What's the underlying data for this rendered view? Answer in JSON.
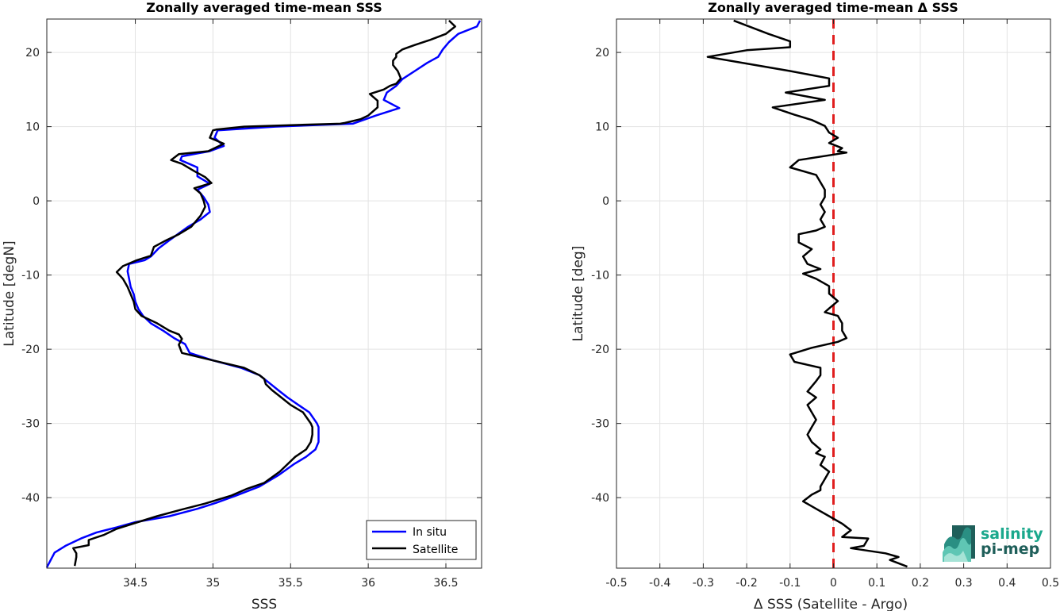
{
  "colors": {
    "in_situ": "#0000ff",
    "satellite": "#000000",
    "zero_line": "#e01e1e",
    "grid": "#e3e3e3",
    "axis": "#262626",
    "logo_teal": "#1aa88c",
    "logo_dark": "#1f5f5a"
  },
  "logo": {
    "line1": "salinity",
    "line2": "pi-mep"
  },
  "chart_data": [
    {
      "type": "line",
      "title": "Zonally averaged time-mean SSS",
      "xlabel": "SSS",
      "ylabel": "Latitude [degN]",
      "xlim": [
        33.93,
        36.73
      ],
      "ylim": [
        -49.5,
        24.5
      ],
      "xticks": [
        34.5,
        35,
        35.5,
        36,
        36.5
      ],
      "xtick_labels": [
        "34.5",
        "35",
        "35.5",
        "36",
        "36.5"
      ],
      "yticks": [
        20,
        10,
        0,
        -10,
        -20,
        -30,
        -40
      ],
      "ytick_labels": [
        "20",
        "10",
        "0",
        "-10",
        "-20",
        "-30",
        "-40"
      ],
      "grid": true,
      "legend": "bottom-right",
      "series": [
        {
          "name": "In situ",
          "color_key": "in_situ",
          "points": [
            [
              36.72,
              24.3
            ],
            [
              36.7,
              23.5
            ],
            [
              36.58,
              22.5
            ],
            [
              36.52,
              21.4
            ],
            [
              36.48,
              20.4
            ],
            [
              36.45,
              19.4
            ],
            [
              36.38,
              18.6
            ],
            [
              36.3,
              17.5
            ],
            [
              36.22,
              16.4
            ],
            [
              36.18,
              15.5
            ],
            [
              36.12,
              14.6
            ],
            [
              36.1,
              13.6
            ],
            [
              36.2,
              12.5
            ],
            [
              36.05,
              11.5
            ],
            [
              35.9,
              10.4
            ],
            [
              35.4,
              10.0
            ],
            [
              35.03,
              9.5
            ],
            [
              35.01,
              8.5
            ],
            [
              35.07,
              7.4
            ],
            [
              34.98,
              6.7
            ],
            [
              34.8,
              6.0
            ],
            [
              34.79,
              5.5
            ],
            [
              34.9,
              4.5
            ],
            [
              34.9,
              3.3
            ],
            [
              34.98,
              2.3
            ],
            [
              34.9,
              1.5
            ],
            [
              34.94,
              0.5
            ],
            [
              34.97,
              -0.5
            ],
            [
              34.98,
              -1.5
            ],
            [
              34.92,
              -2.5
            ],
            [
              34.84,
              -3.5
            ],
            [
              34.72,
              -5.3
            ],
            [
              34.65,
              -6.4
            ],
            [
              34.6,
              -7.5
            ],
            [
              34.56,
              -8.0
            ],
            [
              34.46,
              -8.5
            ],
            [
              34.45,
              -9.5
            ],
            [
              34.46,
              -10.5
            ],
            [
              34.47,
              -11.6
            ],
            [
              34.49,
              -12.6
            ],
            [
              34.5,
              -13.6
            ],
            [
              34.52,
              -14.6
            ],
            [
              34.55,
              -15.5
            ],
            [
              34.6,
              -16.5
            ],
            [
              34.68,
              -17.5
            ],
            [
              34.75,
              -18.5
            ],
            [
              34.82,
              -19.3
            ],
            [
              34.85,
              -20.5
            ],
            [
              35.0,
              -21.5
            ],
            [
              35.18,
              -22.5
            ],
            [
              35.3,
              -23.5
            ],
            [
              35.36,
              -24.5
            ],
            [
              35.42,
              -25.5
            ],
            [
              35.48,
              -26.5
            ],
            [
              35.55,
              -27.5
            ],
            [
              35.62,
              -28.5
            ],
            [
              35.67,
              -30.0
            ],
            [
              35.68,
              -30.5
            ],
            [
              35.68,
              -31.5
            ],
            [
              35.68,
              -32.5
            ],
            [
              35.66,
              -33.5
            ],
            [
              35.6,
              -34.5
            ],
            [
              35.52,
              -35.5
            ],
            [
              35.42,
              -37.0
            ],
            [
              35.3,
              -38.5
            ],
            [
              35.15,
              -39.7
            ],
            [
              35.02,
              -40.7
            ],
            [
              34.9,
              -41.5
            ],
            [
              34.72,
              -42.5
            ],
            [
              34.5,
              -43.3
            ],
            [
              34.38,
              -44.0
            ],
            [
              34.25,
              -44.7
            ],
            [
              34.15,
              -45.5
            ],
            [
              34.05,
              -46.5
            ],
            [
              33.98,
              -47.4
            ],
            [
              33.93,
              -49.4
            ]
          ]
        },
        {
          "name": "Satellite",
          "color_key": "satellite",
          "points": [
            [
              36.52,
              24.3
            ],
            [
              36.56,
              23.5
            ],
            [
              36.5,
              22.5
            ],
            [
              36.4,
              21.7
            ],
            [
              36.3,
              21.0
            ],
            [
              36.22,
              20.4
            ],
            [
              36.18,
              19.8
            ],
            [
              36.18,
              19.4
            ],
            [
              36.16,
              18.9
            ],
            [
              36.16,
              18.3
            ],
            [
              36.19,
              17.5
            ],
            [
              36.21,
              16.5
            ],
            [
              36.18,
              15.8
            ],
            [
              36.14,
              15.5
            ],
            [
              36.1,
              15.0
            ],
            [
              36.01,
              14.4
            ],
            [
              36.06,
              13.5
            ],
            [
              36.06,
              12.6
            ],
            [
              36.0,
              11.5
            ],
            [
              35.95,
              11.0
            ],
            [
              35.85,
              10.5
            ],
            [
              35.82,
              10.4
            ],
            [
              35.5,
              10.2
            ],
            [
              35.2,
              10.0
            ],
            [
              35.02,
              9.6
            ],
            [
              35.0,
              9.5
            ],
            [
              34.98,
              8.5
            ],
            [
              35.07,
              7.7
            ],
            [
              34.97,
              6.7
            ],
            [
              34.78,
              6.3
            ],
            [
              34.73,
              5.5
            ],
            [
              34.8,
              5.0
            ],
            [
              34.88,
              4.0
            ],
            [
              34.95,
              3.2
            ],
            [
              34.99,
              2.4
            ],
            [
              34.88,
              1.7
            ],
            [
              34.92,
              1.0
            ],
            [
              34.94,
              0.0
            ],
            [
              34.95,
              -0.8
            ],
            [
              34.92,
              -2.0
            ],
            [
              34.86,
              -3.5
            ],
            [
              34.78,
              -4.5
            ],
            [
              34.7,
              -5.3
            ],
            [
              34.62,
              -6.2
            ],
            [
              34.6,
              -7.4
            ],
            [
              34.51,
              -8.0
            ],
            [
              34.42,
              -8.8
            ],
            [
              34.38,
              -9.6
            ],
            [
              34.42,
              -10.5
            ],
            [
              34.45,
              -11.6
            ],
            [
              34.47,
              -12.6
            ],
            [
              34.49,
              -13.6
            ],
            [
              34.5,
              -14.6
            ],
            [
              34.54,
              -15.5
            ],
            [
              34.64,
              -16.5
            ],
            [
              34.72,
              -17.5
            ],
            [
              34.78,
              -18.0
            ],
            [
              34.8,
              -18.6
            ],
            [
              34.78,
              -19.4
            ],
            [
              34.8,
              -20.5
            ],
            [
              35.0,
              -21.5
            ],
            [
              35.2,
              -22.5
            ],
            [
              35.3,
              -23.5
            ],
            [
              35.33,
              -24.0
            ],
            [
              35.34,
              -24.7
            ],
            [
              35.38,
              -25.5
            ],
            [
              35.44,
              -26.5
            ],
            [
              35.5,
              -27.5
            ],
            [
              35.58,
              -28.5
            ],
            [
              35.63,
              -30.0
            ],
            [
              35.64,
              -30.5
            ],
            [
              35.64,
              -31.5
            ],
            [
              35.63,
              -32.5
            ],
            [
              35.6,
              -33.5
            ],
            [
              35.53,
              -34.5
            ],
            [
              35.43,
              -36.5
            ],
            [
              35.33,
              -38.0
            ],
            [
              35.22,
              -38.8
            ],
            [
              35.12,
              -39.7
            ],
            [
              34.95,
              -40.8
            ],
            [
              34.8,
              -41.6
            ],
            [
              34.64,
              -42.5
            ],
            [
              34.5,
              -43.4
            ],
            [
              34.38,
              -44.2
            ],
            [
              34.3,
              -45.0
            ],
            [
              34.2,
              -45.7
            ],
            [
              34.2,
              -46.4
            ],
            [
              34.1,
              -46.8
            ],
            [
              34.12,
              -47.5
            ],
            [
              34.12,
              -48.0
            ],
            [
              34.11,
              -49.2
            ]
          ]
        }
      ]
    },
    {
      "type": "line",
      "title": "Zonally averaged time-mean Δ SSS",
      "xlabel": "Δ SSS (Satellite - Argo)",
      "ylabel": "Latitude [deg]",
      "xlim": [
        -0.5,
        0.5
      ],
      "ylim": [
        -49.5,
        24.5
      ],
      "xticks": [
        -0.5,
        -0.4,
        -0.3,
        -0.2,
        -0.1,
        0,
        0.1,
        0.2,
        0.3,
        0.4,
        0.5
      ],
      "xtick_labels": [
        "-0.5",
        "-0.4",
        "-0.3",
        "-0.2",
        "-0.1",
        "0",
        "0.1",
        "0.2",
        "0.3",
        "0.4",
        "0.5"
      ],
      "yticks": [
        20,
        10,
        0,
        -10,
        -20,
        -30,
        -40
      ],
      "ytick_labels": [
        "20",
        "10",
        "0",
        "-10",
        "-20",
        "-30",
        "-40"
      ],
      "grid": true,
      "reference_line_x": 0,
      "series": [
        {
          "name": "",
          "color_key": "satellite",
          "points": [
            [
              -0.23,
              24.3
            ],
            [
              -0.15,
              22.5
            ],
            [
              -0.1,
              21.5
            ],
            [
              -0.1,
              20.7
            ],
            [
              -0.2,
              20.3
            ],
            [
              -0.29,
              19.4
            ],
            [
              -0.2,
              18.5
            ],
            [
              -0.1,
              17.5
            ],
            [
              -0.01,
              16.5
            ],
            [
              -0.01,
              15.5
            ],
            [
              -0.11,
              14.6
            ],
            [
              -0.02,
              13.6
            ],
            [
              -0.14,
              12.6
            ],
            [
              -0.09,
              11.6
            ],
            [
              -0.05,
              10.9
            ],
            [
              -0.02,
              10.1
            ],
            [
              -0.01,
              9.2
            ],
            [
              0.01,
              8.5
            ],
            [
              -0.01,
              7.8
            ],
            [
              0.02,
              7.1
            ],
            [
              0.01,
              6.7
            ],
            [
              0.03,
              6.5
            ],
            [
              -0.08,
              5.5
            ],
            [
              -0.1,
              4.5
            ],
            [
              -0.04,
              3.5
            ],
            [
              -0.03,
              2.5
            ],
            [
              -0.02,
              1.5
            ],
            [
              -0.02,
              0.5
            ],
            [
              -0.03,
              -0.5
            ],
            [
              -0.02,
              -1.5
            ],
            [
              -0.03,
              -2.5
            ],
            [
              -0.02,
              -3.5
            ],
            [
              -0.04,
              -4.0
            ],
            [
              -0.08,
              -4.5
            ],
            [
              -0.08,
              -5.6
            ],
            [
              -0.05,
              -6.5
            ],
            [
              -0.07,
              -7.5
            ],
            [
              -0.06,
              -8.5
            ],
            [
              -0.03,
              -9.2
            ],
            [
              -0.07,
              -9.8
            ],
            [
              -0.04,
              -10.5
            ],
            [
              -0.01,
              -11.5
            ],
            [
              -0.01,
              -12.5
            ],
            [
              0.01,
              -13.5
            ],
            [
              -0.01,
              -14.5
            ],
            [
              -0.02,
              -15.0
            ],
            [
              0.01,
              -15.5
            ],
            [
              0.02,
              -16.5
            ],
            [
              0.02,
              -17.5
            ],
            [
              0.03,
              -18.5
            ],
            [
              0.01,
              -19.0
            ],
            [
              -0.05,
              -19.8
            ],
            [
              -0.1,
              -20.7
            ],
            [
              -0.09,
              -21.7
            ],
            [
              -0.03,
              -22.5
            ],
            [
              -0.03,
              -23.5
            ],
            [
              -0.04,
              -24.3
            ],
            [
              -0.06,
              -25.7
            ],
            [
              -0.04,
              -26.5
            ],
            [
              -0.06,
              -27.5
            ],
            [
              -0.05,
              -28.5
            ],
            [
              -0.04,
              -29.5
            ],
            [
              -0.05,
              -30.5
            ],
            [
              -0.06,
              -31.5
            ],
            [
              -0.05,
              -32.5
            ],
            [
              -0.03,
              -33.5
            ],
            [
              -0.04,
              -34.0
            ],
            [
              -0.02,
              -34.5
            ],
            [
              -0.03,
              -35.6
            ],
            [
              -0.01,
              -36.5
            ],
            [
              -0.02,
              -37.5
            ],
            [
              -0.03,
              -38.5
            ],
            [
              -0.03,
              -39.0
            ],
            [
              -0.05,
              -39.6
            ],
            [
              -0.07,
              -40.5
            ],
            [
              -0.04,
              -41.5
            ],
            [
              -0.01,
              -42.5
            ],
            [
              0.02,
              -43.5
            ],
            [
              0.04,
              -44.4
            ],
            [
              0.02,
              -45.3
            ],
            [
              0.08,
              -45.5
            ],
            [
              0.07,
              -46.5
            ],
            [
              0.04,
              -46.8
            ],
            [
              0.12,
              -47.5
            ],
            [
              0.15,
              -48.0
            ],
            [
              0.13,
              -48.4
            ],
            [
              0.17,
              -49.3
            ]
          ]
        }
      ]
    }
  ]
}
